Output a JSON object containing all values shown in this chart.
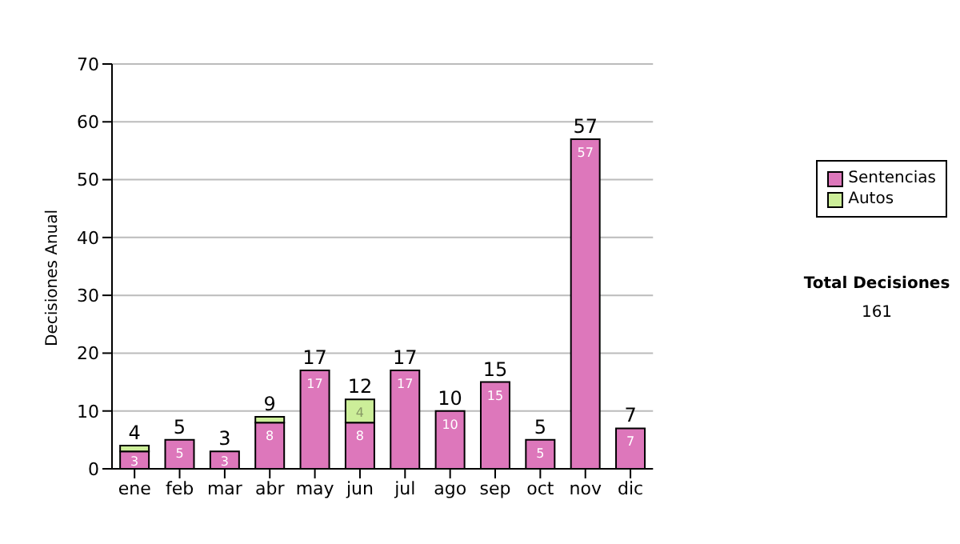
{
  "chart_data": {
    "type": "bar",
    "stacked": true,
    "ylabel": "Decisiones Anual",
    "categories": [
      "ene",
      "feb",
      "mar",
      "abr",
      "may",
      "jun",
      "jul",
      "ago",
      "sep",
      "oct",
      "nov",
      "dic"
    ],
    "series": [
      {
        "name": "Sentencias",
        "color": "#dd77bb",
        "values": [
          3,
          5,
          3,
          8,
          17,
          8,
          17,
          10,
          15,
          5,
          57,
          7
        ],
        "value_labels": [
          "3",
          "5",
          "3",
          "8",
          "17",
          "8",
          "17",
          "10",
          "15",
          "5",
          "57",
          "7"
        ]
      },
      {
        "name": "Autos",
        "color": "#ccee99",
        "values": [
          1,
          null,
          null,
          1,
          null,
          4,
          null,
          null,
          null,
          null,
          null,
          null
        ],
        "value_labels": [
          null,
          null,
          null,
          null,
          null,
          "4",
          null,
          null,
          null,
          null,
          null,
          null
        ]
      }
    ],
    "totals": [
      "4",
      "5",
      "3",
      "9",
      "17",
      "12",
      "17",
      "10",
      "15",
      "5",
      "57",
      "7"
    ],
    "ylim": [
      0,
      70
    ],
    "yticks": [
      0,
      10,
      20,
      30,
      40,
      50,
      60,
      70
    ],
    "grid": "y",
    "legend": "right",
    "annotations": [
      "Total Decisiones",
      "161"
    ]
  }
}
